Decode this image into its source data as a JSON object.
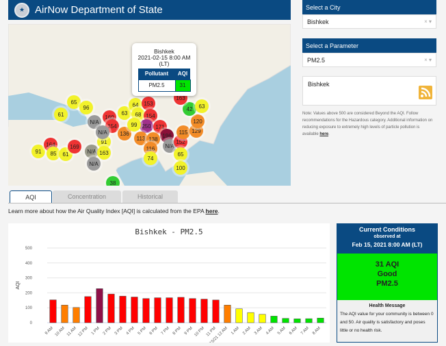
{
  "header": {
    "title": "AirNow Department of State"
  },
  "popup": {
    "city": "Bishkek",
    "time": "2021-02-15 8:00 AM",
    "tz": "(LT)",
    "col_pollutant": "Pollutant",
    "col_aqi": "AQI",
    "pollutant": "PM2.5",
    "aqi": "31",
    "aqi_color": "#00e400"
  },
  "map_markers": [
    {
      "label": "61",
      "color": "#f2f22a"
    },
    {
      "label": "65",
      "color": "#f2f22a"
    },
    {
      "label": "96",
      "color": "#f2f22a"
    },
    {
      "label": "91",
      "color": "#f2f22a"
    },
    {
      "label": "N/A",
      "color": "#9a9a9a"
    },
    {
      "label": "160",
      "color": "#ee3333"
    },
    {
      "label": "154",
      "color": "#ee3333"
    },
    {
      "label": "N/A",
      "color": "#9a9a9a"
    },
    {
      "label": "136",
      "color": "#f28c28"
    },
    {
      "label": "N/A",
      "color": "#9a9a8a"
    },
    {
      "label": "163",
      "color": "#f2f22a"
    },
    {
      "label": "N/A",
      "color": "#9a9a9a"
    },
    {
      "label": "91",
      "color": "#f2f22a"
    },
    {
      "label": "164",
      "color": "#ee3333"
    },
    {
      "label": "85",
      "color": "#f2f22a"
    },
    {
      "label": "61",
      "color": "#f2f22a"
    },
    {
      "label": "169",
      "color": "#ee3333"
    },
    {
      "label": "63",
      "color": "#f2f22a"
    },
    {
      "label": "64",
      "color": "#f2f22a"
    },
    {
      "label": "68",
      "color": "#f2f22a"
    },
    {
      "label": "153",
      "color": "#ee3333"
    },
    {
      "label": "154",
      "color": "#ee3333"
    },
    {
      "label": "250",
      "color": "#a0308a"
    },
    {
      "label": "99",
      "color": "#f2f22a"
    },
    {
      "label": "171",
      "color": "#ee3333"
    },
    {
      "label": "196",
      "color": "#8a1038"
    },
    {
      "label": "113",
      "color": "#f28c28"
    },
    {
      "label": "138",
      "color": "#f28c28"
    },
    {
      "label": "116",
      "color": "#f28c28"
    },
    {
      "label": "74",
      "color": "#f2f22a"
    },
    {
      "label": "N/A",
      "color": "#9a9a9a"
    },
    {
      "label": "152",
      "color": "#ee3333"
    },
    {
      "label": "115",
      "color": "#f28c28"
    },
    {
      "label": "129",
      "color": "#f28c28"
    },
    {
      "label": "65",
      "color": "#f2f22a"
    },
    {
      "label": "100",
      "color": "#f2f22a"
    },
    {
      "label": "120",
      "color": "#f28c28"
    },
    {
      "label": "42",
      "color": "#33cc33"
    },
    {
      "label": "63",
      "color": "#f2f22a"
    },
    {
      "label": "163",
      "color": "#ee3333"
    },
    {
      "label": "38",
      "color": "#33cc33"
    }
  ],
  "tabs": [
    "AQI",
    "Concentration",
    "Historical"
  ],
  "learn": {
    "text": "Learn more about how the Air Quality Index [AQI] is calculated from the EPA ",
    "link": "here",
    "end": "."
  },
  "city_select": {
    "heading": "Select a City",
    "value": "Bishkek",
    "clear": "×",
    "caret": "▾"
  },
  "param_select": {
    "heading": "Select a Parameter",
    "value": "PM2.5",
    "clear": "×",
    "caret": "▾"
  },
  "feed": {
    "title": "Bishkek",
    "icon": "rss-icon"
  },
  "note": {
    "text": "Note: Values above 500 are considered Beyond the AQI. Follow recommendations for the Hazardous category. Additional information on reducing exposure to extremely high levels of particle pollution is available ",
    "link": "here",
    "end": "."
  },
  "current": {
    "title": "Current Conditions",
    "observed": "observed at",
    "time": "Feb 15, 2021 8:00 AM (LT)",
    "aqi": "31 AQI",
    "category": "Good",
    "pollutant": "PM2.5",
    "health_title": "Health Message",
    "health_text": "The AQI value for your community is between 0 and 50. Air quality is satisfactory and poses little or no health risk.",
    "color": "#00e400"
  },
  "chart_data": {
    "type": "bar",
    "title": "Bishkek - PM2.5",
    "xlabel": "",
    "ylabel": "AQI",
    "ylim": [
      0,
      500
    ],
    "yticks": [
      0,
      100,
      200,
      300,
      400,
      500
    ],
    "grid": true,
    "categories": [
      "9 AM",
      "10 AM",
      "11 AM",
      "12 PM",
      "1 PM",
      "2 PM",
      "3 PM",
      "4 PM",
      "5 PM",
      "6 PM",
      "7 PM",
      "8 PM",
      "9 PM",
      "10 PM",
      "11 PM",
      "2/15/21 12 AM",
      "1 AM",
      "2 AM",
      "3 AM",
      "4 AM",
      "5 AM",
      "6 AM",
      "7 AM",
      "8 AM"
    ],
    "values": [
      153,
      118,
      102,
      175,
      228,
      192,
      178,
      172,
      162,
      167,
      167,
      170,
      162,
      158,
      152,
      118,
      93,
      68,
      56,
      44,
      29,
      26,
      27,
      31
    ],
    "colors": [
      "#ff0000",
      "#ff7e00",
      "#ff7e00",
      "#ff0000",
      "#8f1048",
      "#ff0000",
      "#ff0000",
      "#ff0000",
      "#ff0000",
      "#ff0000",
      "#ff0000",
      "#ff0000",
      "#ff0000",
      "#ff0000",
      "#ff0000",
      "#ff7e00",
      "#ffff00",
      "#ffff00",
      "#ffff00",
      "#00e400",
      "#00e400",
      "#00e400",
      "#00e400",
      "#00e400"
    ]
  }
}
